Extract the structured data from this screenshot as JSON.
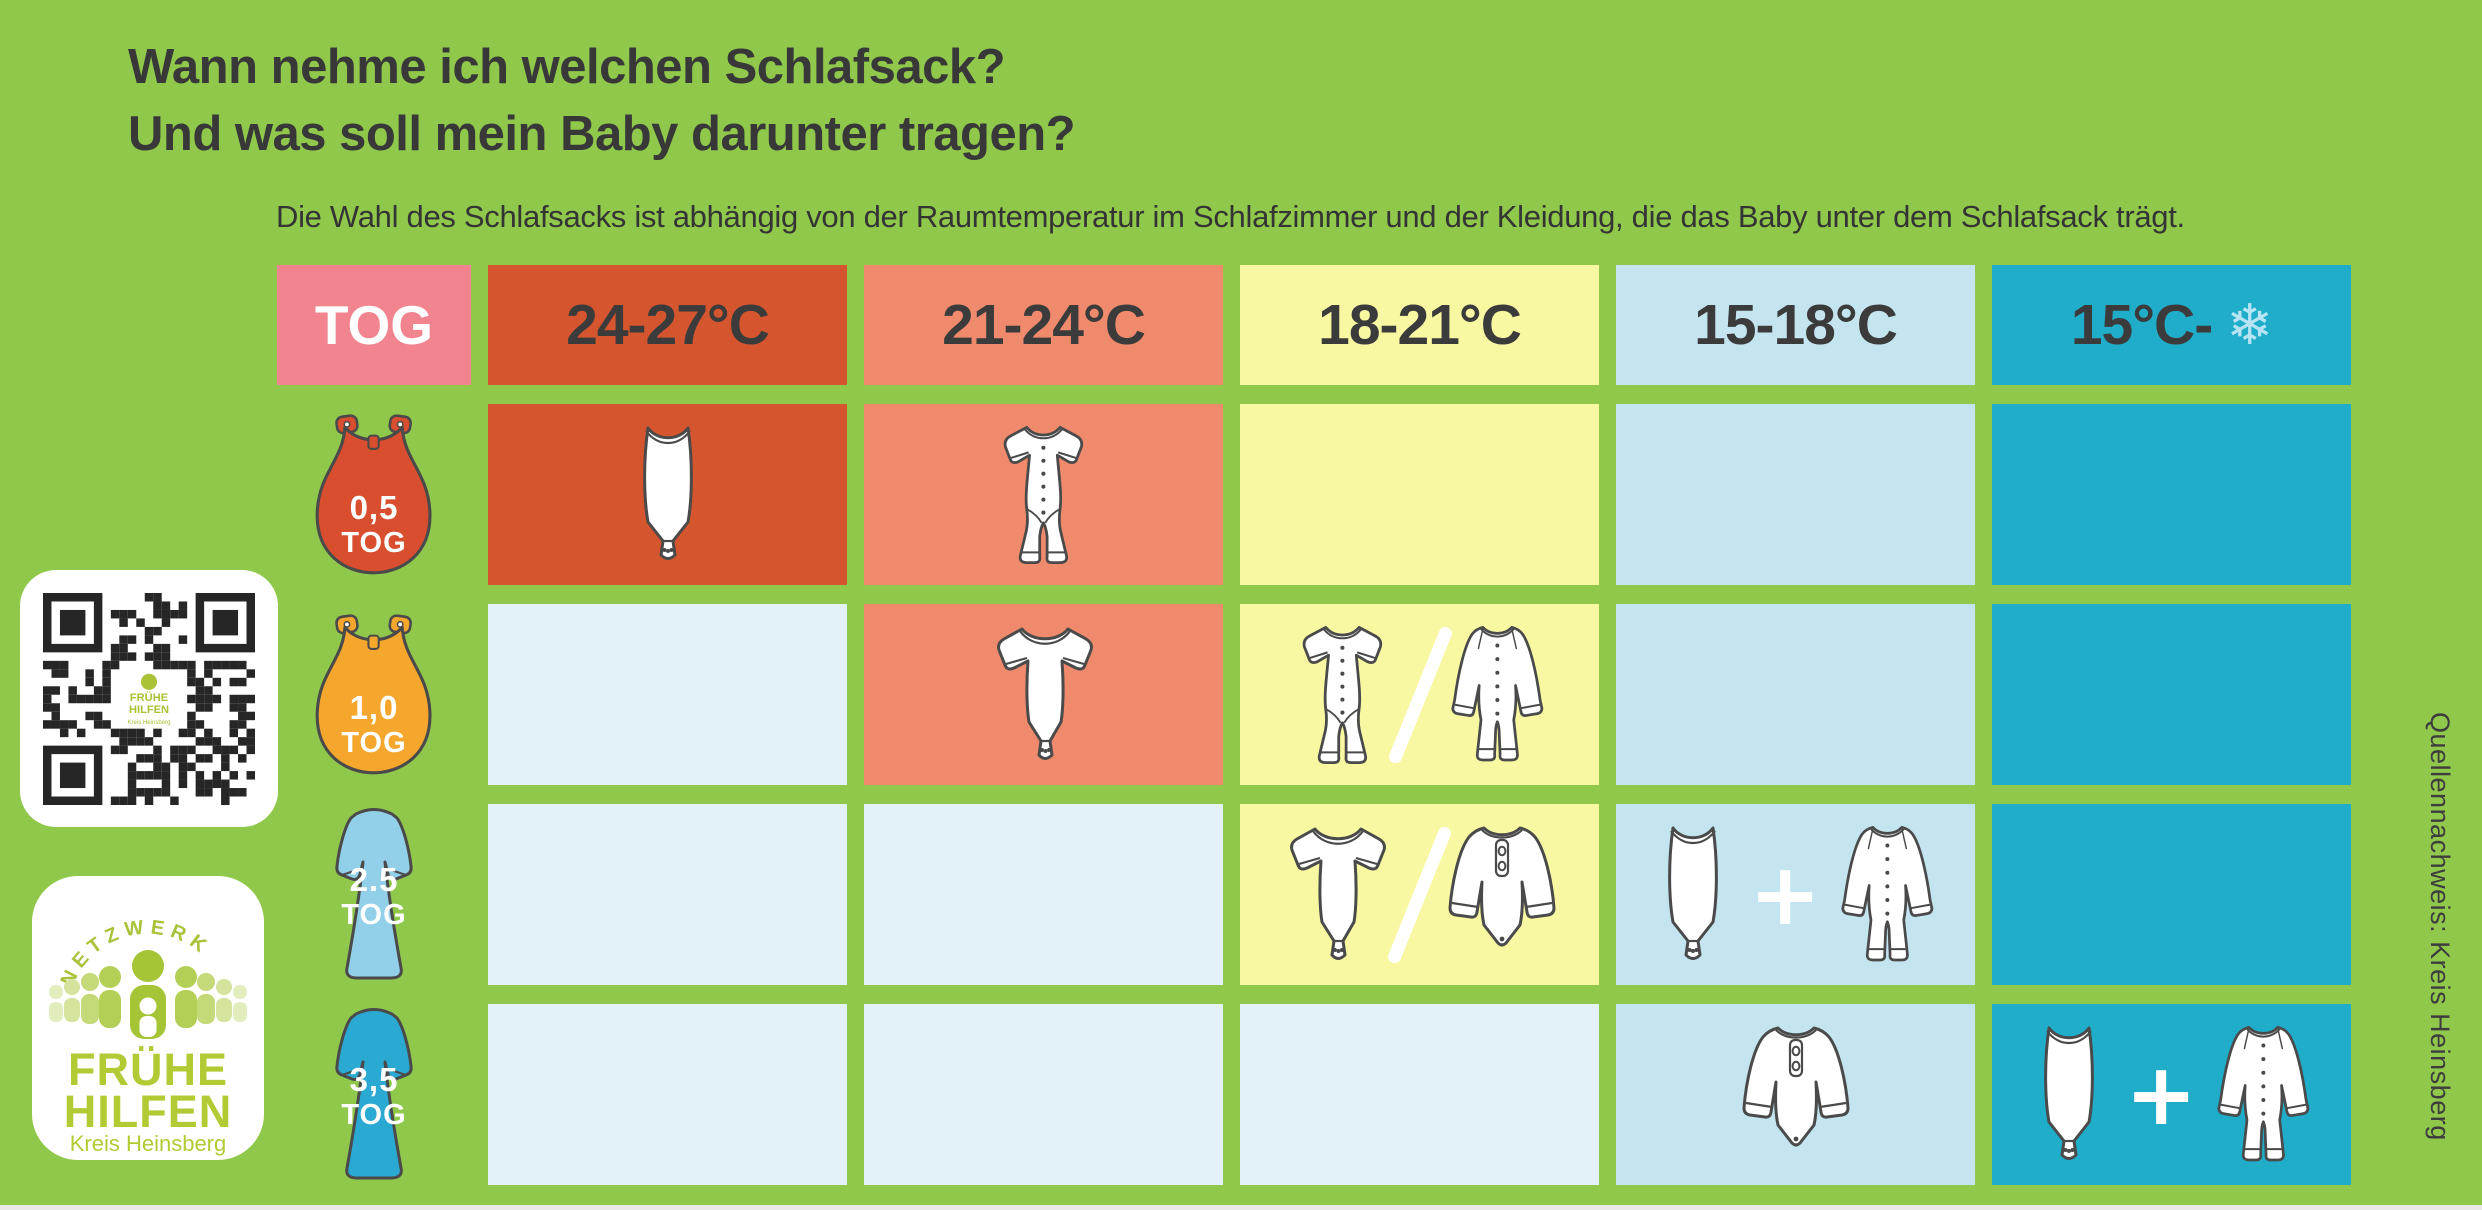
{
  "page": {
    "title_line1": "Wann nehme ich welchen Schlafsack?",
    "title_line2": "Und was soll mein Baby darunter tragen?",
    "subtitle": "Die Wahl des Schlafsacks ist abhängig von der Raumtemperatur im Schlafzimmer und der Kleidung, die das Baby unter dem Schlafsack trägt.",
    "source_note": "Quellennachweis: Kreis Heinsberg",
    "background_color": "#90c84b"
  },
  "logo": {
    "arc_text": "NETZWERK",
    "line1": "FRÜHE",
    "line2": "HILFEN",
    "line3": "Kreis Heinsberg",
    "color": "#b2cb35",
    "people_icon": "family-network-icon"
  },
  "qr": {
    "icon": "qr-code",
    "center_line1": "FRÜHE",
    "center_line2": "HILFEN",
    "center_line3": "Kreis Heinsberg"
  },
  "table": {
    "corner_label": "TOG",
    "corner_bg": "#f2848f",
    "not_applicable_bg": "#e2f2f7",
    "columns": [
      {
        "label": "24-27°C",
        "bg": "#d5552e"
      },
      {
        "label": "21-24°C",
        "bg": "#f08a6c"
      },
      {
        "label": "18-21°C",
        "bg": "#f8f7a2"
      },
      {
        "label": "15-18°C",
        "bg": "#c4e5f0"
      },
      {
        "label": "15°C-",
        "bg": "#1fadc9",
        "icon": "snowflake-icon",
        "icon_color": "#b7e4f3"
      }
    ],
    "rows": [
      {
        "tog_value": "0,5",
        "tog_unit": "TOG",
        "bag_icon": "sleeping-bag-sleeveless",
        "bag_color": "#d84e2e",
        "cells": [
          {
            "bg": "#d5552e",
            "items": [
              "bodysuit-sleeveless"
            ]
          },
          {
            "bg": "#f08a6c",
            "items": [
              "romper-short-sleeve"
            ]
          },
          {
            "bg": "#f8f7a2",
            "items": []
          },
          {
            "bg": "#c4e5f0",
            "items": []
          },
          {
            "bg": "#1fadc9",
            "items": []
          }
        ]
      },
      {
        "tog_value": "1,0",
        "tog_unit": "TOG",
        "bag_icon": "sleeping-bag-sleeveless",
        "bag_color": "#f5a62c",
        "cells": [
          {
            "bg": "#e2f2f7",
            "items": []
          },
          {
            "bg": "#f08a6c",
            "items": [
              "bodysuit-short-sleeve"
            ]
          },
          {
            "bg": "#f8f7a2",
            "items": [
              "romper-short-sleeve",
              "slash",
              "sleepsuit-long-sleeve"
            ]
          },
          {
            "bg": "#c4e5f0",
            "items": []
          },
          {
            "bg": "#1fadc9",
            "items": []
          }
        ]
      },
      {
        "tog_value": "2.5",
        "tog_unit": "TOG",
        "bag_icon": "sleeping-gown-long-sleeve",
        "bag_color": "#92cfe9",
        "cells": [
          {
            "bg": "#e2f2f7",
            "items": []
          },
          {
            "bg": "#e2f2f7",
            "items": []
          },
          {
            "bg": "#f8f7a2",
            "items": [
              "bodysuit-short-sleeve",
              "slash",
              "bodysuit-long-sleeve"
            ]
          },
          {
            "bg": "#c4e5f0",
            "items": [
              "bodysuit-sleeveless",
              "plus",
              "sleepsuit-long-sleeve"
            ]
          },
          {
            "bg": "#1fadc9",
            "items": []
          }
        ]
      },
      {
        "tog_value": "3,5",
        "tog_unit": "TOG",
        "bag_icon": "sleeping-gown-long-sleeve",
        "bag_color": "#2aa9d2",
        "cells": [
          {
            "bg": "#e2f2f7",
            "items": []
          },
          {
            "bg": "#e2f2f7",
            "items": []
          },
          {
            "bg": "#e2f2f7",
            "items": []
          },
          {
            "bg": "#c4e5f0",
            "items": [
              "bodysuit-long-sleeve"
            ]
          },
          {
            "bg": "#1fadc9",
            "items": [
              "bodysuit-sleeveless",
              "plus",
              "sleepsuit-long-sleeve"
            ]
          }
        ]
      }
    ]
  }
}
